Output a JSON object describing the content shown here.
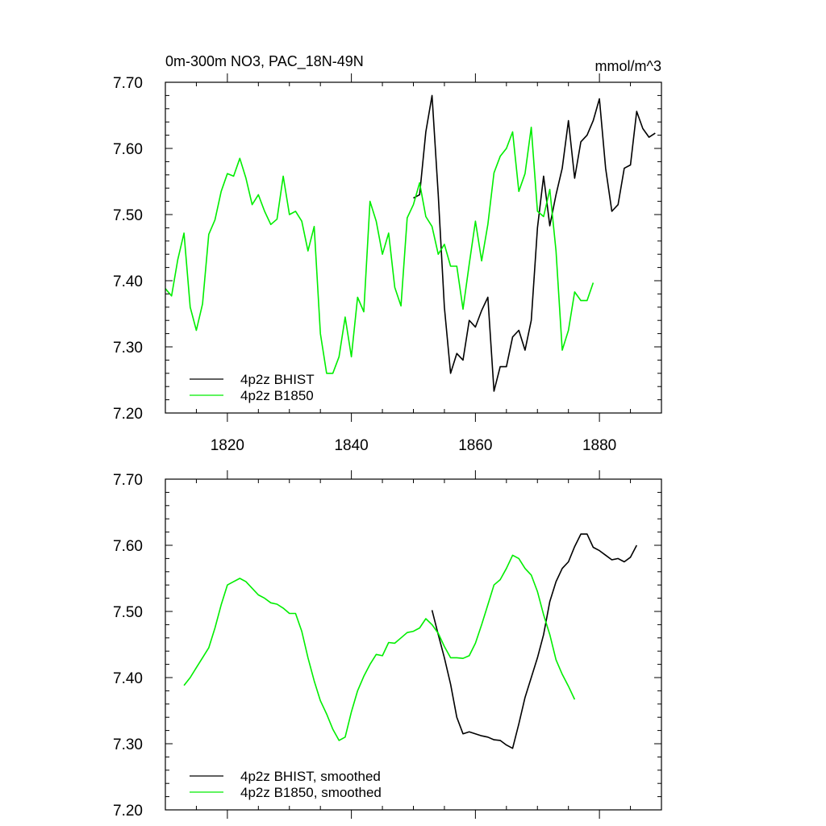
{
  "chart_data": [
    {
      "type": "line",
      "title": "0m-300m NO3, PAC_18N-49N",
      "units": "mmol/m^3",
      "ylim": [
        7.2,
        7.7
      ],
      "yticks": [
        7.2,
        7.3,
        7.4,
        7.5,
        7.6,
        7.7
      ],
      "ytick_labels": [
        "7.20",
        "7.30",
        "7.40",
        "7.50",
        "7.60",
        "7.70"
      ],
      "xlim": [
        1810,
        1890
      ],
      "xticks": [
        1820,
        1840,
        1860,
        1880
      ],
      "xtick_labels": [
        "1820",
        "1840",
        "1860",
        "1880"
      ],
      "legend_position": "bottom-left",
      "series": [
        {
          "name": "4p2z BHIST",
          "color": "#000000",
          "x": [
            1850,
            1851,
            1852,
            1853,
            1854,
            1855,
            1856,
            1857,
            1858,
            1859,
            1860,
            1861,
            1862,
            1863,
            1864,
            1865,
            1866,
            1867,
            1868,
            1869,
            1870,
            1871,
            1872,
            1873,
            1874,
            1875,
            1876,
            1877,
            1878,
            1879,
            1880,
            1881,
            1882,
            1883,
            1884,
            1885,
            1886,
            1887,
            1888,
            1889
          ],
          "y": [
            7.525,
            7.53,
            7.625,
            7.68,
            7.53,
            7.36,
            7.26,
            7.29,
            7.28,
            7.34,
            7.33,
            7.355,
            7.375,
            7.233,
            7.27,
            7.27,
            7.315,
            7.325,
            7.295,
            7.34,
            7.48,
            7.558,
            7.483,
            7.53,
            7.57,
            7.642,
            7.555,
            7.61,
            7.62,
            7.642,
            7.675,
            7.57,
            7.505,
            7.515,
            7.57,
            7.575,
            7.656,
            7.63,
            7.617,
            7.623
          ]
        },
        {
          "name": "4p2z B1850",
          "color": "#00ee00",
          "x": [
            1810,
            1811,
            1812,
            1813,
            1814,
            1815,
            1816,
            1817,
            1818,
            1819,
            1820,
            1821,
            1822,
            1823,
            1824,
            1825,
            1826,
            1827,
            1828,
            1829,
            1830,
            1831,
            1832,
            1833,
            1834,
            1835,
            1836,
            1837,
            1838,
            1839,
            1840,
            1841,
            1842,
            1843,
            1844,
            1845,
            1846,
            1847,
            1848,
            1849,
            1850,
            1851,
            1852,
            1853,
            1854,
            1855,
            1856,
            1857,
            1858,
            1859,
            1860,
            1861,
            1862,
            1863,
            1864,
            1865,
            1866,
            1867,
            1868,
            1869,
            1870,
            1871,
            1872,
            1873,
            1874,
            1875,
            1876,
            1877,
            1878,
            1879
          ],
          "y": [
            7.388,
            7.377,
            7.432,
            7.472,
            7.36,
            7.325,
            7.365,
            7.47,
            7.492,
            7.535,
            7.562,
            7.558,
            7.585,
            7.555,
            7.515,
            7.53,
            7.505,
            7.485,
            7.493,
            7.558,
            7.5,
            7.505,
            7.49,
            7.445,
            7.482,
            7.32,
            7.26,
            7.26,
            7.285,
            7.345,
            7.285,
            7.375,
            7.353,
            7.52,
            7.49,
            7.44,
            7.472,
            7.39,
            7.362,
            7.495,
            7.515,
            7.548,
            7.497,
            7.482,
            7.44,
            7.455,
            7.422,
            7.422,
            7.357,
            7.425,
            7.49,
            7.43,
            7.485,
            7.563,
            7.588,
            7.6,
            7.625,
            7.535,
            7.562,
            7.632,
            7.505,
            7.497,
            7.538,
            7.445,
            7.295,
            7.325,
            7.383,
            7.37,
            7.37,
            7.397
          ]
        }
      ]
    },
    {
      "type": "line",
      "ylim": [
        7.2,
        7.7
      ],
      "yticks": [
        7.2,
        7.3,
        7.4,
        7.5,
        7.6,
        7.7
      ],
      "ytick_labels": [
        "7.20",
        "7.30",
        "7.40",
        "7.50",
        "7.60",
        "7.70"
      ],
      "xlim": [
        1810,
        1890
      ],
      "xticks": [
        1820,
        1840,
        1860,
        1880
      ],
      "legend_position": "bottom-left",
      "series": [
        {
          "name": "4p2z BHIST, smoothed",
          "color": "#000000",
          "x": [
            1853,
            1854,
            1855,
            1856,
            1857,
            1858,
            1859,
            1860,
            1861,
            1862,
            1863,
            1864,
            1865,
            1866,
            1867,
            1868,
            1869,
            1870,
            1871,
            1872,
            1873,
            1874,
            1875,
            1876,
            1877,
            1878,
            1879,
            1880,
            1881,
            1882,
            1883,
            1884,
            1885,
            1886
          ],
          "y": [
            7.502,
            7.465,
            7.43,
            7.39,
            7.34,
            7.315,
            7.318,
            7.315,
            7.312,
            7.31,
            7.306,
            7.305,
            7.298,
            7.293,
            7.33,
            7.37,
            7.4,
            7.43,
            7.465,
            7.515,
            7.545,
            7.565,
            7.575,
            7.598,
            7.617,
            7.617,
            7.597,
            7.592,
            7.585,
            7.578,
            7.58,
            7.575,
            7.582,
            7.6
          ]
        },
        {
          "name": "4p2z B1850, smoothed",
          "color": "#00ee00",
          "x": [
            1813,
            1814,
            1815,
            1816,
            1817,
            1818,
            1819,
            1820,
            1821,
            1822,
            1823,
            1824,
            1825,
            1826,
            1827,
            1828,
            1829,
            1830,
            1831,
            1832,
            1833,
            1834,
            1835,
            1836,
            1837,
            1838,
            1839,
            1840,
            1841,
            1842,
            1843,
            1844,
            1845,
            1846,
            1847,
            1848,
            1849,
            1850,
            1851,
            1852,
            1853,
            1854,
            1855,
            1856,
            1857,
            1858,
            1859,
            1860,
            1861,
            1862,
            1863,
            1864,
            1865,
            1866,
            1867,
            1868,
            1869,
            1870,
            1871,
            1872,
            1873,
            1874,
            1875,
            1876
          ],
          "y": [
            7.388,
            7.4,
            7.415,
            7.43,
            7.445,
            7.475,
            7.51,
            7.54,
            7.545,
            7.55,
            7.545,
            7.535,
            7.525,
            7.52,
            7.513,
            7.511,
            7.505,
            7.497,
            7.497,
            7.47,
            7.43,
            7.395,
            7.365,
            7.345,
            7.322,
            7.305,
            7.31,
            7.348,
            7.38,
            7.402,
            7.42,
            7.435,
            7.433,
            7.453,
            7.452,
            7.46,
            7.468,
            7.47,
            7.475,
            7.489,
            7.48,
            7.467,
            7.447,
            7.43,
            7.43,
            7.429,
            7.433,
            7.452,
            7.48,
            7.51,
            7.54,
            7.548,
            7.565,
            7.585,
            7.58,
            7.565,
            7.555,
            7.53,
            7.495,
            7.465,
            7.427,
            7.405,
            7.387,
            7.367
          ]
        }
      ]
    }
  ]
}
